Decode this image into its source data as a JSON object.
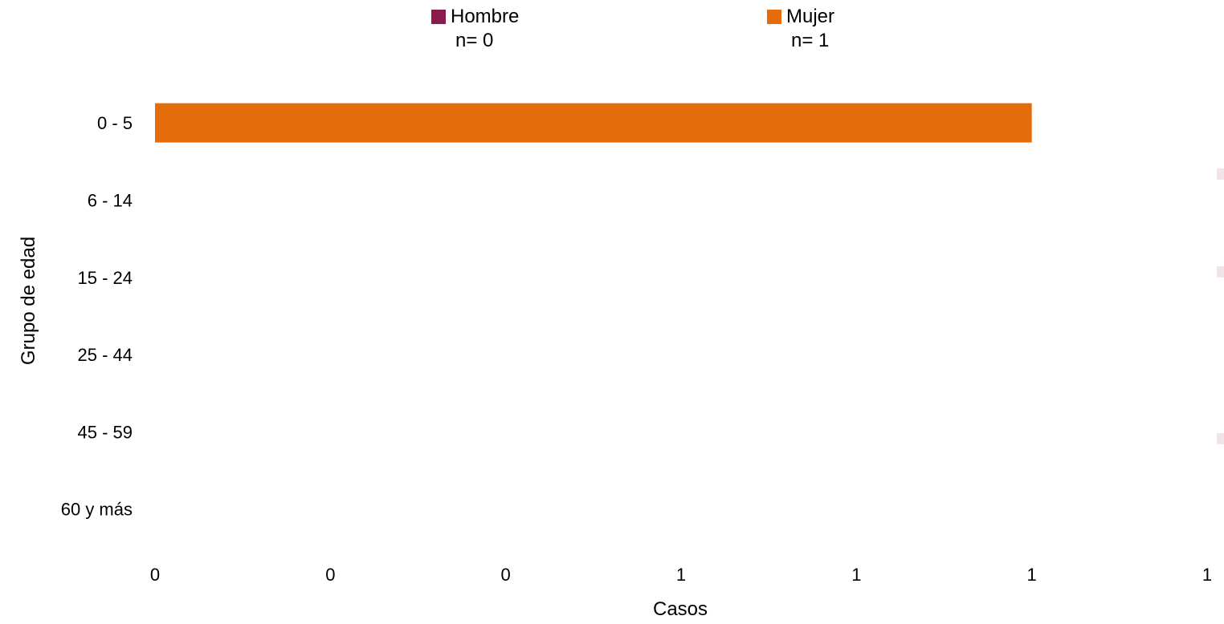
{
  "chart_data": {
    "type": "bar",
    "orientation": "horizontal",
    "categories": [
      "0 - 5",
      "6 - 14",
      "15 - 24",
      "25 - 44",
      "45 - 59",
      "60 y más"
    ],
    "series": [
      {
        "name": "Hombre",
        "color": "#8b1a4f",
        "values": [
          0,
          0,
          0,
          0,
          0,
          0
        ],
        "count_label": "n= 0"
      },
      {
        "name": "Mujer",
        "color": "#e46c0a",
        "values": [
          1,
          0,
          0,
          0,
          0,
          0
        ],
        "count_label": "n= 1"
      }
    ],
    "xlabel": "Casos",
    "ylabel": "Grupo de edad",
    "x_tick_labels": [
      "0",
      "0",
      "0",
      "1",
      "1",
      "1",
      "1"
    ],
    "xlim": [
      0,
      1.2
    ],
    "grid": false,
    "legend_position": "top"
  }
}
